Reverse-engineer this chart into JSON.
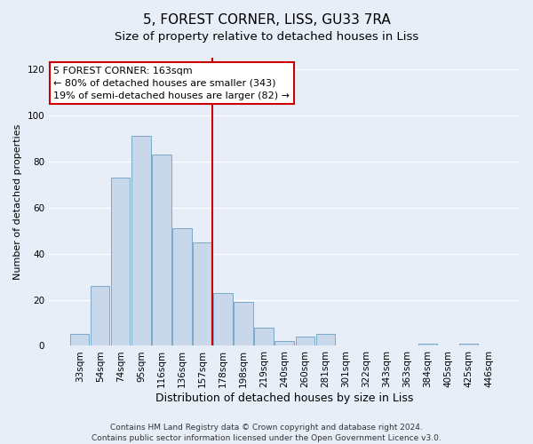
{
  "title": "5, FOREST CORNER, LISS, GU33 7RA",
  "subtitle": "Size of property relative to detached houses in Liss",
  "xlabel": "Distribution of detached houses by size in Liss",
  "ylabel": "Number of detached properties",
  "categories": [
    "33sqm",
    "54sqm",
    "74sqm",
    "95sqm",
    "116sqm",
    "136sqm",
    "157sqm",
    "178sqm",
    "198sqm",
    "219sqm",
    "240sqm",
    "260sqm",
    "281sqm",
    "301sqm",
    "322sqm",
    "343sqm",
    "363sqm",
    "384sqm",
    "405sqm",
    "425sqm",
    "446sqm"
  ],
  "values": [
    5,
    26,
    73,
    91,
    83,
    51,
    45,
    23,
    19,
    8,
    2,
    4,
    5,
    0,
    0,
    0,
    0,
    1,
    0,
    1,
    0
  ],
  "bar_color": "#c8d8ea",
  "bar_edge_color": "#7aaac8",
  "vline_color": "#cc0000",
  "vline_index": 6.5,
  "ylim": [
    0,
    125
  ],
  "yticks": [
    0,
    20,
    40,
    60,
    80,
    100,
    120
  ],
  "annotation_title": "5 FOREST CORNER: 163sqm",
  "annotation_line1": "← 80% of detached houses are smaller (343)",
  "annotation_line2": "19% of semi-detached houses are larger (82) →",
  "annotation_box_color": "#ffffff",
  "annotation_box_edge": "#cc0000",
  "footnote1": "Contains HM Land Registry data © Crown copyright and database right 2024.",
  "footnote2": "Contains public sector information licensed under the Open Government Licence v3.0.",
  "background_color": "#e8eef8",
  "grid_color": "#ffffff",
  "title_fontsize": 11,
  "subtitle_fontsize": 9.5,
  "xlabel_fontsize": 9,
  "ylabel_fontsize": 8,
  "tick_fontsize": 7.5,
  "footnote_fontsize": 6.5,
  "ann_fontsize": 8
}
